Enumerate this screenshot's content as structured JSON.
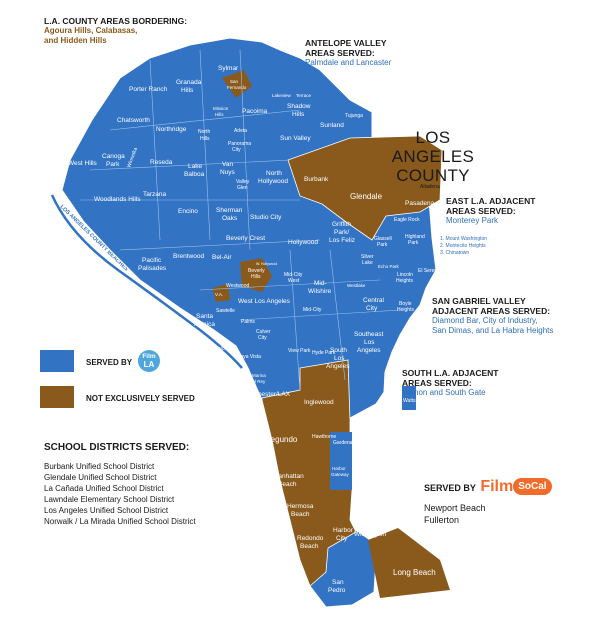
{
  "bordering": {
    "heading": "L.A. COUNTY AREAS BORDERING:",
    "line1": "Agoura Hills, Calabasas,",
    "line2": "and Hidden Hills"
  },
  "antelope": {
    "heading1": "ANTELOPE VALLEY",
    "heading2": "AREAS SERVED:",
    "value": "Palmdale and Lancaster"
  },
  "county_title": {
    "line1": "LOS ANGELES",
    "line2": "COUNTY"
  },
  "east_la": {
    "heading1": "EAST L.A. ADJACENT",
    "heading2": "AREAS SERVED:",
    "value": "Monterey Park"
  },
  "numbered_list": [
    "1. Mount Washington",
    "2. Montecito Heights",
    "3. Chinatown"
  ],
  "sgv": {
    "heading1": "SAN GABRIEL VALLEY",
    "heading2": "ADJACENT AREAS SERVED:",
    "line1": "Diamond Bar, City of Industry,",
    "line2": "San Dimas, and La Habra Heights"
  },
  "south_la": {
    "heading1": "SOUTH L.A. ADJACENT",
    "heading2": "AREAS SERVED:",
    "value": "Vernon and South Gate"
  },
  "legend": {
    "served_by": "SERVED BY",
    "film": "Film",
    "la": "LA",
    "not_exclusive": "NOT EXCLUSIVELY SERVED",
    "served_color": "#3273c4",
    "not_served_color": "#8a5a1c"
  },
  "schools": {
    "title": "SCHOOL DISTRICTS SERVED:",
    "items": [
      "Burbank Unified School District",
      "Glendale Unified School District",
      "La Cañada Unified School District",
      "Lawndale Elementary School District",
      "Los Angeles Unified School District",
      "Norwalk / La Mirada Unified School District"
    ]
  },
  "socal": {
    "served_by": "SERVED BY",
    "film": "Film",
    "badge": "SoCal",
    "line1": "Newport Beach",
    "line2": "Fullerton"
  },
  "beaches_label": "LOS ANGELES COUNTY BEACHES",
  "map_labels": {
    "sylmar": "Sylmar",
    "san_fernando1": "San",
    "san_fernando2": "Fernando",
    "granada1": "Granada",
    "granada2": "Hills",
    "porter_ranch": "Porter Ranch",
    "mission1": "Mission",
    "mission2": "Hills",
    "pacoima": "Pacoima",
    "lakeview": "Lakeview",
    "terrace": "Terrace",
    "shadow1": "Shadow",
    "shadow2": "Hills",
    "tujunga": "Tujunga",
    "sunland": "Sunland",
    "chatsworth": "Chatsworth",
    "northridge": "Northridge",
    "north_hills1": "North",
    "north_hills2": "Hills",
    "arleta": "Arleta",
    "panorama1": "Panorama",
    "panorama2": "City",
    "sun_valley": "Sun Valley",
    "west_hills1": "West Hills",
    "canoga1": "Canoga",
    "canoga2": "Park",
    "winnetka": "Winnetka",
    "reseda": "Reseda",
    "lake1": "Lake",
    "lake2": "Balboa",
    "van1": "Van",
    "van2": "Nuys",
    "valley1": "Valley",
    "valley2": "Glen",
    "nh1": "North",
    "nh2": "Hollywood",
    "burbank": "Burbank",
    "glendale": "Glendale",
    "altadena": "Altadena",
    "pasadena": "Pasadena",
    "woodland": "Woodlands Hills",
    "tarzana": "Tarzana",
    "encino": "Encino",
    "sherman1": "Sherman",
    "sherman2": "Oaks",
    "studio": "Studio City",
    "eagle": "Eagle Rock",
    "griffith1": "Griffith",
    "griffith2": "Park/",
    "griffith3": "Los Feliz",
    "highland1": "Highland",
    "highland2": "Park",
    "glassell1": "Glassell",
    "glassell2": "Park",
    "beverly_crest": "Beverly Crest",
    "hollywood": "Hollywood",
    "brentwood": "Brentwood",
    "belair": "Bel-Air",
    "pacific1": "Pacific",
    "pacific2": "Palisades",
    "bh1": "Beverly",
    "bh2": "Hills",
    "wh": "W. Hollywood",
    "mcw1": "Mid-City",
    "mcw2": "West",
    "westwood": "Westwood",
    "va": "V.A.",
    "wla": "West Los Angeles",
    "mid1": "Mid-",
    "mid2": "Wilshire",
    "silver1": "Silver",
    "silver2": "Lake",
    "echo": "Echo Park",
    "elsereno": "El Sereno",
    "lincoln1": "Lincoln",
    "lincoln2": "Heights",
    "boyle1": "Boyle",
    "boyle2": "Heights",
    "central1": "Central",
    "central2": "City",
    "westlake": "Westlake",
    "sawtelle": "Sawtelle",
    "santa1": "Santa",
    "santa2": "Monica",
    "midcity": "Mid-City",
    "palms": "Palms",
    "cc1": "Culver",
    "cc2": "City",
    "mdr1": "Marina",
    "mdr2": "del Rey",
    "venice": "Venice",
    "playa": "Playa Vista",
    "view_park": "View Park",
    "hyde": "Hyde Park",
    "south1": "South",
    "south2": "Los",
    "south3": "Angeles",
    "se1": "Southeast",
    "se2": "Los",
    "se3": "Angeles",
    "westchester": "Westchester/LAX",
    "inglewood": "Inglewood",
    "watts": "Watts",
    "hawthorne": "Hawthorne",
    "elsegundo": "El Segundo",
    "harbor1": "Harbor",
    "harbor2": "Gateway",
    "gardena": "Gardena",
    "manhattan1": "Manhattan",
    "manhattan2": "Beach",
    "hermosa1": "Hermosa",
    "hermosa2": "Beach",
    "redondo1": "Redondo",
    "redondo2": "Beach",
    "hc1": "Harbor",
    "hc2": "City",
    "wilmington": "Wilmington",
    "sanpedro1": "San",
    "sanpedro2": "Pedro",
    "longbeach": "Long Beach"
  }
}
